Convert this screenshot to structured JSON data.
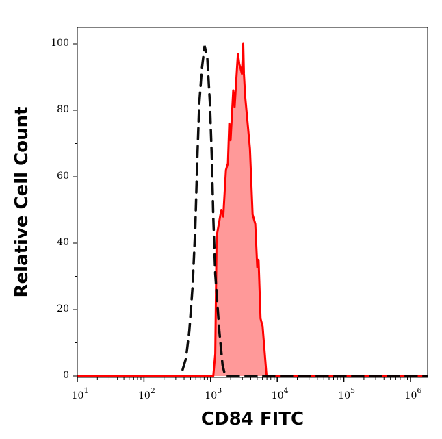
{
  "chart_data": {
    "type": "area",
    "title": "",
    "xlabel": "CD84 FITC",
    "ylabel": "Relative Cell Count",
    "xscale": "log",
    "xlim": [
      10,
      1800000
    ],
    "ylim": [
      0,
      100
    ],
    "x_ticks": [
      {
        "base": "10",
        "exp": "1"
      },
      {
        "base": "10",
        "exp": "2"
      },
      {
        "base": "10",
        "exp": "3"
      },
      {
        "base": "10",
        "exp": "4"
      },
      {
        "base": "10",
        "exp": "5"
      },
      {
        "base": "10",
        "exp": "6"
      }
    ],
    "y_ticks": [
      "0",
      "20",
      "40",
      "60",
      "80",
      "100"
    ],
    "grid": false,
    "legend": "none",
    "series": [
      {
        "style": "dashed-line",
        "color": "#000000",
        "x": [
          380,
          427,
          479,
          537,
          589,
          631,
          676,
          741,
          813,
          891,
          977,
          1047,
          1096,
          1175,
          1349,
          1514,
          1660,
          1800000
        ],
        "y": [
          1.9,
          5.3,
          13.6,
          27,
          44.5,
          65,
          82,
          92.6,
          99.4,
          96,
          82,
          65,
          48,
          30.7,
          13.6,
          3.3,
          0,
          0
        ]
      },
      {
        "style": "filled",
        "color": "#ff0000",
        "fill": "#ff9999",
        "x": [
          10,
          1096,
          1175,
          1230,
          1445,
          1549,
          1698,
          1820,
          1905,
          1995,
          2188,
          2291,
          2570,
          2692,
          2951,
          3090,
          3162,
          3311,
          3890,
          4266,
          4677,
          5012,
          5248,
          5623,
          6026,
          6918,
          1800000
        ],
        "y": [
          0,
          0,
          6.7,
          42,
          50,
          48,
          62,
          64,
          76,
          71,
          86,
          81,
          97,
          94,
          91,
          100,
          91,
          84,
          68.5,
          48.6,
          45.8,
          32.8,
          35,
          17.3,
          15,
          0,
          0
        ]
      }
    ]
  }
}
